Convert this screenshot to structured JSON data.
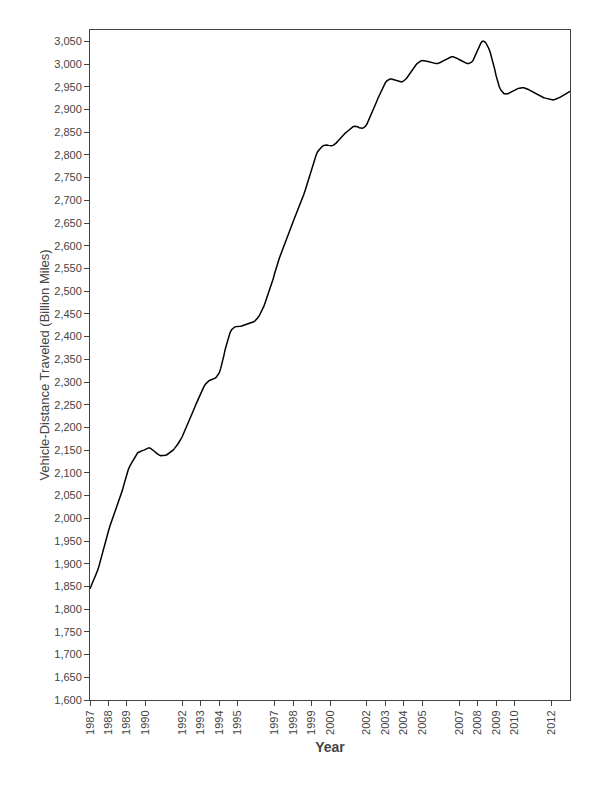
{
  "chart_data": {
    "type": "line",
    "xlabel": "Year",
    "ylabel": "Vehicle-Distance Traveled (Billion Miles)",
    "color": "#000000",
    "grid": false,
    "xlim": [
      1987.0,
      2013.0
    ],
    "ylim": [
      1600,
      3075
    ],
    "xticks": [
      1987,
      1988,
      1989,
      1990,
      1992,
      1993,
      1994,
      1995,
      1997,
      1998,
      1999,
      2000,
      2002,
      2003,
      2004,
      2005,
      2007,
      2008,
      2009,
      2010,
      2012
    ],
    "yticks": [
      {
        "value": 1600,
        "label": "1,600"
      },
      {
        "value": 1650,
        "label": "1,650"
      },
      {
        "value": 1700,
        "label": "1,700"
      },
      {
        "value": 1750,
        "label": "1,750"
      },
      {
        "value": 1800,
        "label": "1,800"
      },
      {
        "value": 1850,
        "label": "1,850"
      },
      {
        "value": 1900,
        "label": "1,900"
      },
      {
        "value": 1950,
        "label": "1,950"
      },
      {
        "value": 2000,
        "label": "2,000"
      },
      {
        "value": 2050,
        "label": "2,050"
      },
      {
        "value": 2100,
        "label": "2,100"
      },
      {
        "value": 2150,
        "label": "2,150"
      },
      {
        "value": 2200,
        "label": "2,200"
      },
      {
        "value": 2250,
        "label": "2,250"
      },
      {
        "value": 2300,
        "label": "2,300"
      },
      {
        "value": 2350,
        "label": "2,350"
      },
      {
        "value": 2400,
        "label": "2,400"
      },
      {
        "value": 2450,
        "label": "2,450"
      },
      {
        "value": 2500,
        "label": "2,500"
      },
      {
        "value": 2550,
        "label": "2,550"
      },
      {
        "value": 2600,
        "label": "2,600"
      },
      {
        "value": 2650,
        "label": "2,650"
      },
      {
        "value": 2700,
        "label": "2,700"
      },
      {
        "value": 2750,
        "label": "2,750"
      },
      {
        "value": 2800,
        "label": "2,800"
      },
      {
        "value": 2850,
        "label": "2,850"
      },
      {
        "value": 2900,
        "label": "2,900"
      },
      {
        "value": 2950,
        "label": "2,950"
      },
      {
        "value": 3000,
        "label": "3,000"
      },
      {
        "value": 3050,
        "label": "3,050"
      }
    ],
    "x": [
      1987.0,
      1987.08,
      1987.17,
      1987.25,
      1987.33,
      1987.42,
      1987.5,
      1987.58,
      1987.67,
      1987.75,
      1987.83,
      1987.92,
      1988.0,
      1988.08,
      1988.17,
      1988.25,
      1988.33,
      1988.42,
      1988.5,
      1988.58,
      1988.67,
      1988.75,
      1988.83,
      1988.92,
      1989.0,
      1989.08,
      1989.17,
      1989.25,
      1989.33,
      1989.42,
      1989.5,
      1989.58,
      1989.67,
      1989.75,
      1989.83,
      1989.92,
      1990.0,
      1990.08,
      1990.17,
      1990.25,
      1990.33,
      1990.42,
      1990.5,
      1990.58,
      1990.67,
      1990.75,
      1990.83,
      1990.92,
      1991.0,
      1991.08,
      1991.17,
      1991.25,
      1991.33,
      1991.42,
      1991.5,
      1991.58,
      1991.67,
      1991.75,
      1991.83,
      1991.92,
      1992.0,
      1992.08,
      1992.17,
      1992.25,
      1992.33,
      1992.42,
      1992.5,
      1992.58,
      1992.67,
      1992.75,
      1992.83,
      1992.92,
      1993.0,
      1993.08,
      1993.17,
      1993.25,
      1993.33,
      1993.42,
      1993.5,
      1993.58,
      1993.67,
      1993.75,
      1993.83,
      1993.92,
      1994.0,
      1994.08,
      1994.17,
      1994.25,
      1994.33,
      1994.42,
      1994.5,
      1994.58,
      1994.67,
      1994.75,
      1994.83,
      1994.92,
      1995.0,
      1995.08,
      1995.17,
      1995.25,
      1995.33,
      1995.42,
      1995.5,
      1995.58,
      1995.67,
      1995.75,
      1995.83,
      1995.92,
      1996.0,
      1996.08,
      1996.17,
      1996.25,
      1996.33,
      1996.42,
      1996.5,
      1996.58,
      1996.67,
      1996.75,
      1996.83,
      1996.92,
      1997.0,
      1997.08,
      1997.17,
      1997.25,
      1997.33,
      1997.42,
      1997.5,
      1997.58,
      1997.67,
      1997.75,
      1997.83,
      1997.92,
      1998.0,
      1998.08,
      1998.17,
      1998.25,
      1998.33,
      1998.42,
      1998.5,
      1998.58,
      1998.67,
      1998.75,
      1998.83,
      1998.92,
      1999.0,
      1999.08,
      1999.17,
      1999.25,
      1999.33,
      1999.42,
      1999.5,
      1999.58,
      1999.67,
      1999.75,
      1999.83,
      1999.92,
      2000.0,
      2000.08,
      2000.17,
      2000.25,
      2000.33,
      2000.42,
      2000.5,
      2000.58,
      2000.67,
      2000.75,
      2000.83,
      2000.92,
      2001.0,
      2001.08,
      2001.17,
      2001.25,
      2001.33,
      2001.42,
      2001.5,
      2001.58,
      2001.67,
      2001.75,
      2001.83,
      2001.92,
      2002.0,
      2002.08,
      2002.17,
      2002.25,
      2002.33,
      2002.42,
      2002.5,
      2002.58,
      2002.67,
      2002.75,
      2002.83,
      2002.92,
      2003.0,
      2003.08,
      2003.17,
      2003.25,
      2003.33,
      2003.42,
      2003.5,
      2003.58,
      2003.67,
      2003.75,
      2003.83,
      2003.92,
      2004.0,
      2004.08,
      2004.17,
      2004.25,
      2004.33,
      2004.42,
      2004.5,
      2004.58,
      2004.67,
      2004.75,
      2004.83,
      2004.92,
      2005.0,
      2005.08,
      2005.17,
      2005.25,
      2005.33,
      2005.42,
      2005.5,
      2005.58,
      2005.67,
      2005.75,
      2005.83,
      2005.92,
      2006.0,
      2006.08,
      2006.17,
      2006.25,
      2006.33,
      2006.42,
      2006.5,
      2006.58,
      2006.67,
      2006.75,
      2006.83,
      2006.92,
      2007.0,
      2007.08,
      2007.17,
      2007.25,
      2007.33,
      2007.42,
      2007.5,
      2007.58,
      2007.67,
      2007.75,
      2007.83,
      2007.92,
      2008.0,
      2008.08,
      2008.17,
      2008.25,
      2008.33,
      2008.42,
      2008.5,
      2008.58,
      2008.67,
      2008.75,
      2008.83,
      2008.92,
      2009.0,
      2009.08,
      2009.17,
      2009.25,
      2009.33,
      2009.42,
      2009.5,
      2009.58,
      2009.67,
      2009.75,
      2009.83,
      2009.92,
      2010.0,
      2010.08,
      2010.17,
      2010.25,
      2010.33,
      2010.42,
      2010.5,
      2010.58,
      2010.67,
      2010.75,
      2010.83,
      2010.92,
      2011.0,
      2011.08,
      2011.17,
      2011.25,
      2011.33,
      2011.42,
      2011.5,
      2011.58,
      2011.67,
      2011.75,
      2011.83,
      2011.92,
      2012.0,
      2012.08,
      2012.17,
      2012.25,
      2012.33,
      2012.42,
      2012.5,
      2012.58,
      2012.67,
      2012.75,
      2012.83,
      2012.92,
      2013.0
    ],
    "values": [
      1845,
      1855,
      1862,
      1869,
      1876,
      1886,
      1897,
      1910,
      1923,
      1936,
      1948,
      1960,
      1972,
      1983,
      1993,
      2002,
      2011,
      2020,
      2030,
      2040,
      2050,
      2061,
      2073,
      2086,
      2098,
      2108,
      2116,
      2122,
      2128,
      2134,
      2140,
      2144,
      2146,
      2148,
      2149,
      2150,
      2152,
      2154,
      2155,
      2155,
      2153,
      2150,
      2147,
      2144,
      2141,
      2139,
      2138,
      2138,
      2138,
      2139,
      2140,
      2142,
      2144,
      2147,
      2150,
      2154,
      2158,
      2163,
      2168,
      2174,
      2180,
      2188,
      2196,
      2204,
      2212,
      2220,
      2228,
      2236,
      2244,
      2252,
      2260,
      2268,
      2276,
      2284,
      2290,
      2295,
      2299,
      2302,
      2304,
      2305,
      2306,
      2308,
      2310,
      2314,
      2320,
      2330,
      2343,
      2358,
      2373,
      2387,
      2398,
      2408,
      2415,
      2419,
      2421,
      2422,
      2422,
      2422,
      2423,
      2424,
      2425,
      2426,
      2427,
      2428,
      2429,
      2430,
      2432,
      2434,
      2437,
      2441,
      2446,
      2452,
      2459,
      2467,
      2476,
      2485,
      2495,
      2505,
      2516,
      2527,
      2539,
      2551,
      2562,
      2572,
      2581,
      2590,
      2599,
      2608,
      2617,
      2626,
      2635,
      2644,
      2653,
      2661,
      2669,
      2677,
      2685,
      2694,
      2703,
      2713,
      2724,
      2735,
      2747,
      2759,
      2771,
      2782,
      2792,
      2800,
      2807,
      2812,
      2816,
      2819,
      2821,
      2822,
      2822,
      2821,
      2820,
      2820,
      2821,
      2823,
      2826,
      2830,
      2834,
      2838,
      2842,
      2845,
      2848,
      2851,
      2854,
      2857,
      2860,
      2862,
      2863,
      2863,
      2862,
      2860,
      2859,
      2859,
      2860,
      2863,
      2868,
      2875,
      2883,
      2891,
      2899,
      2907,
      2915,
      2923,
      2931,
      2939,
      2947,
      2954,
      2959,
      2963,
      2966,
      2967,
      2967,
      2966,
      2965,
      2963,
      2962,
      2961,
      2961,
      2961,
      2963,
      2966,
      2970,
      2975,
      2980,
      2985,
      2990,
      2995,
      2999,
      3002,
      3005,
      3007,
      3008,
      3008,
      3007,
      3006,
      3005,
      3004,
      3003,
      3002,
      3001,
      3001,
      3001,
      3002,
      3004,
      3006,
      3008,
      3010,
      3012,
      3014,
      3015,
      3016,
      3016,
      3015,
      3014,
      3012,
      3010,
      3008,
      3006,
      3004,
      3002,
      3001,
      3001,
      3002,
      3004,
      3008,
      3015,
      3023,
      3032,
      3040,
      3046,
      3050,
      3050,
      3048,
      3043,
      3036,
      3027,
      3016,
      3003,
      2989,
      2974,
      2961,
      2950,
      2943,
      2938,
      2935,
      2934,
      2934,
      2935,
      2937,
      2939,
      2940,
      2942,
      2944,
      2946,
      2947,
      2948,
      2948,
      2948,
      2947,
      2946,
      2944,
      2942,
      2940,
      2938,
      2936,
      2934,
      2932,
      2930,
      2928,
      2927,
      2926,
      2925,
      2924,
      2923,
      2922,
      2921,
      2921,
      2922,
      2923,
      2924,
      2926,
      2928,
      2930,
      2932,
      2934,
      2936,
      2938,
      2940
    ]
  }
}
